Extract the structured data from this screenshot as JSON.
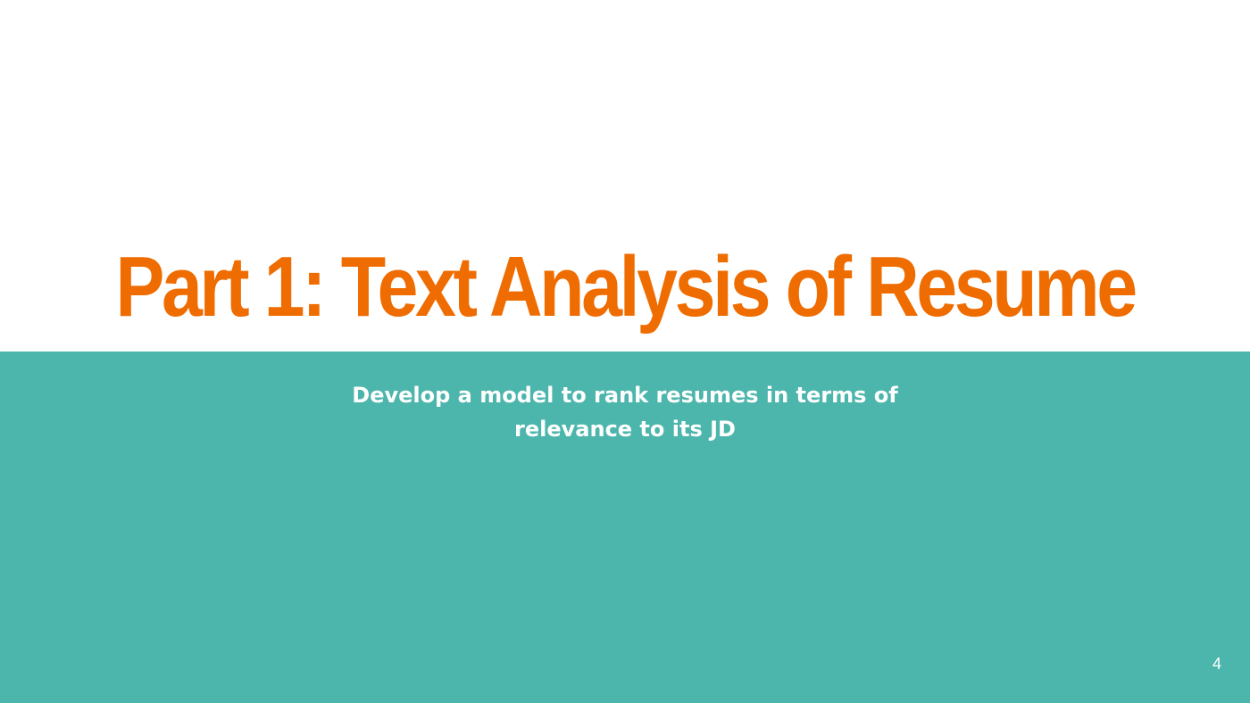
{
  "slide": {
    "title": "Part 1: Text Analysis of Resume",
    "subtitle_line1": "Develop a model to rank resumes in terms of",
    "subtitle_line2": "relevance to its JD",
    "page_number": "4"
  },
  "colors": {
    "title": "#ef6c00",
    "band": "#4db6ac",
    "background": "#ffffff",
    "body_text": "#ffffff"
  }
}
